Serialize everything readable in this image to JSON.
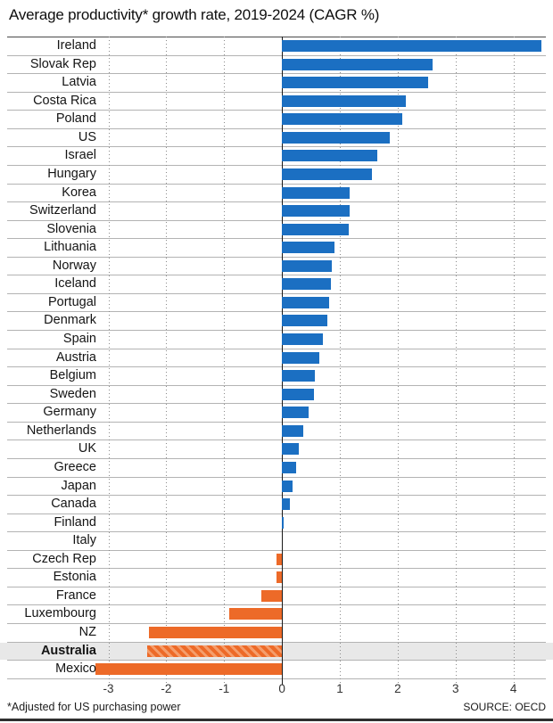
{
  "title": "Average productivity* growth rate, 2019-2024 (CAGR %)",
  "footnote": "*Adjusted for US purchasing power",
  "source": "SOURCE: OECD",
  "chart_data": {
    "type": "bar",
    "orientation": "horizontal",
    "title": "Average productivity* growth rate, 2019-2024 (CAGR %)",
    "xlabel": "CAGR %",
    "ylabel": "",
    "categories": [
      "Ireland",
      "Slovak Rep",
      "Latvia",
      "Costa Rica",
      "Poland",
      "US",
      "Israel",
      "Hungary",
      "Korea",
      "Switzerland",
      "Slovenia",
      "Lithuania",
      "Norway",
      "Iceland",
      "Portugal",
      "Denmark",
      "Spain",
      "Austria",
      "Belgium",
      "Sweden",
      "Germany",
      "Netherlands",
      "UK",
      "Greece",
      "Japan",
      "Canada",
      "Finland",
      "Italy",
      "Czech Rep",
      "Estonia",
      "France",
      "Luxembourg",
      "NZ",
      "Australia",
      "Mexico"
    ],
    "values": [
      4.48,
      2.6,
      2.52,
      2.14,
      2.08,
      1.87,
      1.65,
      1.55,
      1.17,
      1.17,
      1.15,
      0.91,
      0.86,
      0.85,
      0.82,
      0.79,
      0.71,
      0.65,
      0.57,
      0.56,
      0.46,
      0.36,
      0.29,
      0.25,
      0.18,
      0.13,
      0.03,
      0.0,
      -0.09,
      -0.09,
      -0.36,
      -0.91,
      -2.3,
      -2.33,
      -3.22
    ],
    "highlight_category": "Australia",
    "highlight_style": "diagonal-hatch",
    "xlim": [
      -4.75,
      4.56
    ],
    "xticks": [
      -3,
      -2,
      -1,
      0,
      1,
      2,
      3,
      4
    ],
    "grid": "vertical-dotted",
    "legend": "none",
    "colors": {
      "positive": "#1b6fc2",
      "negative": "#ed6a28",
      "highlight_stripe": "#f59d6b",
      "row_band": "#e8e8e8",
      "grid": "#8a8a8a",
      "axis": "#1a1a1a",
      "separator": "#b3b3b3",
      "top_border": "#4a4a4a"
    }
  }
}
